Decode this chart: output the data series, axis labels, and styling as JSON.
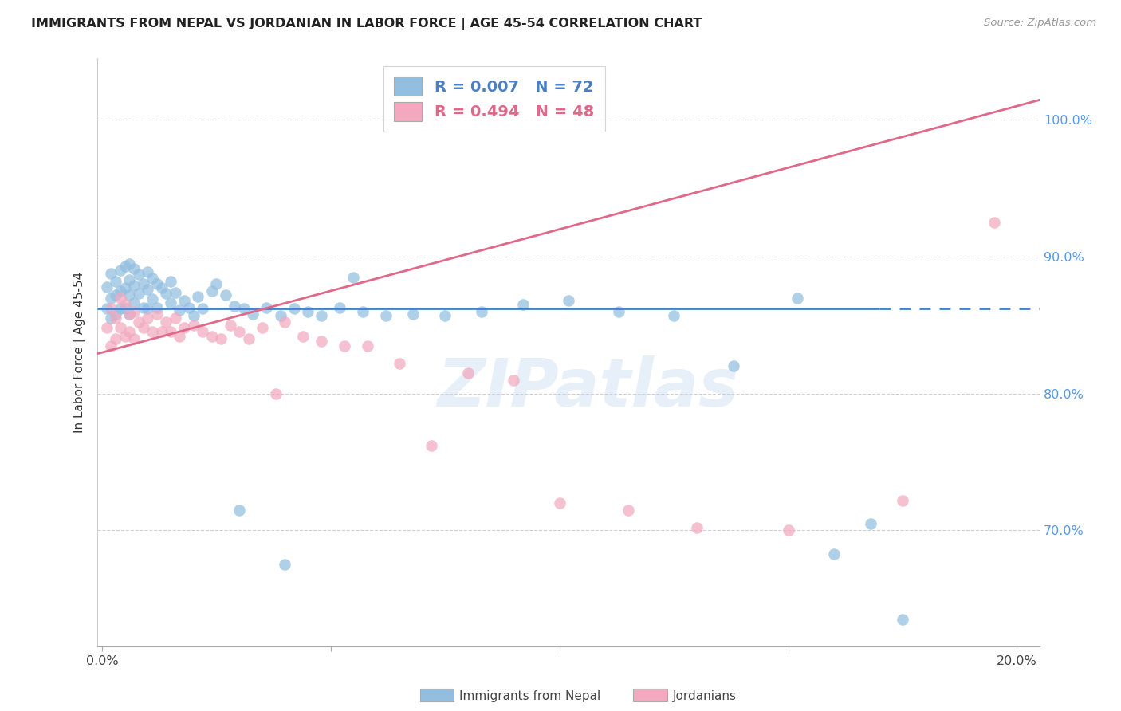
{
  "title": "IMMIGRANTS FROM NEPAL VS JORDANIAN IN LABOR FORCE | AGE 45-54 CORRELATION CHART",
  "source": "Source: ZipAtlas.com",
  "ylabel": "In Labor Force | Age 45-54",
  "xlim": [
    -0.001,
    0.205
  ],
  "ylim": [
    0.615,
    1.045
  ],
  "yticks": [
    0.7,
    0.8,
    0.9,
    1.0
  ],
  "xticks": [
    0.0,
    0.05,
    0.1,
    0.15,
    0.2
  ],
  "xtick_labels": [
    "0.0%",
    "",
    "",
    "",
    "20.0%"
  ],
  "ytick_labels": [
    "70.0%",
    "80.0%",
    "90.0%",
    "100.0%"
  ],
  "nepal_R": 0.007,
  "nepal_N": 72,
  "jordan_R": 0.494,
  "jordan_N": 48,
  "nepal_color": "#92bfe0",
  "jordan_color": "#f2a8be",
  "nepal_line_color": "#4a7fc1",
  "jordan_line_color": "#e06888",
  "bg_color": "#ffffff",
  "grid_color": "#cccccc",
  "nepal_x": [
    0.001,
    0.001,
    0.002,
    0.002,
    0.002,
    0.003,
    0.003,
    0.003,
    0.004,
    0.004,
    0.004,
    0.005,
    0.005,
    0.005,
    0.006,
    0.006,
    0.006,
    0.006,
    0.007,
    0.007,
    0.007,
    0.008,
    0.008,
    0.009,
    0.009,
    0.01,
    0.01,
    0.01,
    0.011,
    0.011,
    0.012,
    0.012,
    0.013,
    0.014,
    0.015,
    0.015,
    0.016,
    0.017,
    0.018,
    0.019,
    0.02,
    0.021,
    0.022,
    0.024,
    0.025,
    0.027,
    0.029,
    0.031,
    0.033,
    0.036,
    0.039,
    0.042,
    0.045,
    0.048,
    0.052,
    0.057,
    0.062,
    0.068,
    0.075,
    0.083,
    0.092,
    0.102,
    0.113,
    0.125,
    0.138,
    0.152,
    0.168,
    0.16,
    0.175,
    0.055,
    0.03,
    0.04
  ],
  "nepal_y": [
    0.862,
    0.878,
    0.888,
    0.87,
    0.855,
    0.882,
    0.872,
    0.858,
    0.89,
    0.875,
    0.862,
    0.893,
    0.877,
    0.862,
    0.895,
    0.883,
    0.872,
    0.858,
    0.891,
    0.879,
    0.866,
    0.887,
    0.873,
    0.88,
    0.863,
    0.889,
    0.876,
    0.862,
    0.884,
    0.869,
    0.88,
    0.863,
    0.877,
    0.873,
    0.882,
    0.866,
    0.874,
    0.861,
    0.868,
    0.863,
    0.857,
    0.871,
    0.862,
    0.875,
    0.88,
    0.872,
    0.864,
    0.862,
    0.858,
    0.863,
    0.857,
    0.862,
    0.86,
    0.857,
    0.863,
    0.86,
    0.857,
    0.858,
    0.857,
    0.86,
    0.865,
    0.868,
    0.86,
    0.857,
    0.82,
    0.87,
    0.705,
    0.683,
    0.635,
    0.885,
    0.715,
    0.675
  ],
  "jordan_x": [
    0.001,
    0.002,
    0.002,
    0.003,
    0.003,
    0.004,
    0.004,
    0.005,
    0.005,
    0.006,
    0.006,
    0.007,
    0.007,
    0.008,
    0.009,
    0.01,
    0.011,
    0.012,
    0.013,
    0.014,
    0.015,
    0.016,
    0.017,
    0.018,
    0.02,
    0.022,
    0.024,
    0.026,
    0.028,
    0.03,
    0.032,
    0.035,
    0.038,
    0.04,
    0.044,
    0.048,
    0.053,
    0.058,
    0.065,
    0.072,
    0.08,
    0.09,
    0.1,
    0.115,
    0.13,
    0.15,
    0.175,
    0.195
  ],
  "jordan_y": [
    0.848,
    0.862,
    0.835,
    0.855,
    0.84,
    0.87,
    0.848,
    0.865,
    0.842,
    0.858,
    0.845,
    0.86,
    0.84,
    0.852,
    0.848,
    0.855,
    0.845,
    0.858,
    0.845,
    0.852,
    0.845,
    0.855,
    0.842,
    0.848,
    0.85,
    0.845,
    0.842,
    0.84,
    0.85,
    0.845,
    0.84,
    0.848,
    0.8,
    0.852,
    0.842,
    0.838,
    0.835,
    0.835,
    0.822,
    0.762,
    0.815,
    0.81,
    0.72,
    0.715,
    0.702,
    0.7,
    0.722,
    0.925
  ],
  "watermark_text": "ZIPatlas",
  "legend_label_nepal": "R = 0.007   N = 72",
  "legend_label_jordan": "R = 0.494   N = 48",
  "bottom_legend_nepal": "Immigrants from Nepal",
  "bottom_legend_jordan": "Jordanians",
  "nepal_line_start_x": 0.0,
  "nepal_line_end_solid_x": 0.17,
  "nepal_line_end_x": 0.205
}
